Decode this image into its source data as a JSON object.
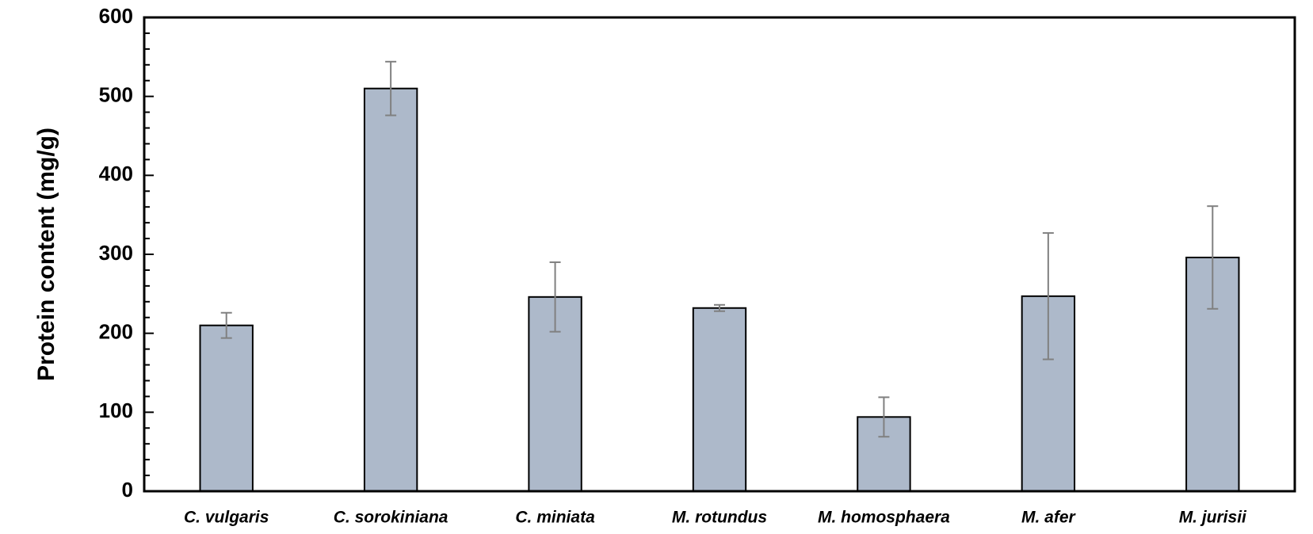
{
  "chart_data": {
    "type": "bar",
    "y_label": "Protein content (mg/g)",
    "categories": [
      "C. vulgaris",
      "C. sorokiniana",
      "C. miniata",
      "M. rotundus",
      "M. homosphaera",
      "M. afer",
      "M. jurisii"
    ],
    "values": [
      210,
      510,
      246,
      232,
      94,
      247,
      296
    ],
    "errors": [
      16,
      34,
      44,
      4,
      25,
      80,
      65
    ],
    "color": "#adb9ca",
    "error_color": "#808080",
    "ylim": [
      0,
      600
    ],
    "yticks": [
      0,
      100,
      200,
      300,
      400,
      500,
      600
    ],
    "grid": false
  }
}
